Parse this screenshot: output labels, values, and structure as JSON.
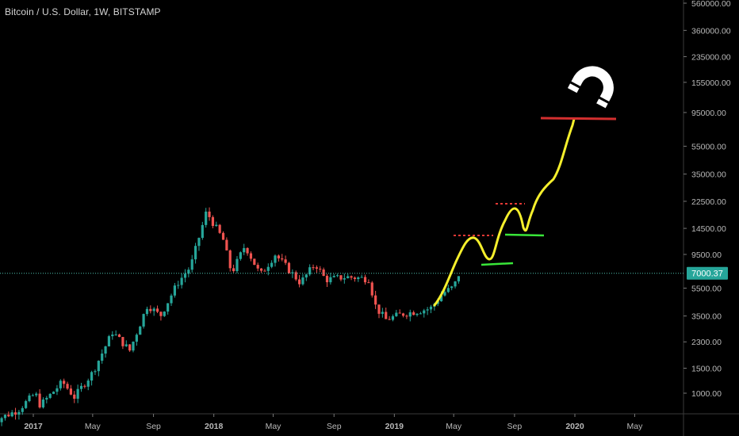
{
  "chart_data": {
    "type": "candlestick",
    "title": "Bitcoin / U.S. Dollar, 1W, BITSTAMP",
    "scale": "log",
    "ylim": [
      700,
      640000
    ],
    "y_ticks": [
      {
        "label": "560000.00",
        "value": 560000
      },
      {
        "label": "360000.00",
        "value": 360000
      },
      {
        "label": "235000.00",
        "value": 235000
      },
      {
        "label": "155000.00",
        "value": 155000
      },
      {
        "label": "95000.00",
        "value": 95000
      },
      {
        "label": "55000.00",
        "value": 55000
      },
      {
        "label": "35000.00",
        "value": 35000
      },
      {
        "label": "22500.00",
        "value": 22500
      },
      {
        "label": "14500.00",
        "value": 14500
      },
      {
        "label": "9500.00",
        "value": 9500
      },
      {
        "label": "5500.00",
        "value": 5500
      },
      {
        "label": "3500.00",
        "value": 3500
      },
      {
        "label": "2300.00",
        "value": 2300
      },
      {
        "label": "1500.00",
        "value": 1500
      },
      {
        "label": "1000.00",
        "value": 1000
      }
    ],
    "x_ticks": [
      {
        "label": "2017",
        "date": "2017-01-01",
        "bold": true
      },
      {
        "label": "May",
        "date": "2017-05-01",
        "bold": false
      },
      {
        "label": "Sep",
        "date": "2017-09-01",
        "bold": false
      },
      {
        "label": "2018",
        "date": "2018-01-01",
        "bold": true
      },
      {
        "label": "May",
        "date": "2018-05-01",
        "bold": false
      },
      {
        "label": "Sep",
        "date": "2018-09-01",
        "bold": false
      },
      {
        "label": "2019",
        "date": "2019-01-01",
        "bold": true
      },
      {
        "label": "May",
        "date": "2019-05-01",
        "bold": false
      },
      {
        "label": "Sep",
        "date": "2019-09-01",
        "bold": false
      },
      {
        "label": "2020",
        "date": "2020-01-01",
        "bold": true
      },
      {
        "label": "May",
        "date": "2020-05-01",
        "bold": false
      }
    ],
    "last_price": {
      "label": "7000.37",
      "value": 7000.37
    },
    "up_color": "#26a69a",
    "down_color": "#ef5350",
    "price_key_points": [
      {
        "date": "2016-10-01",
        "close": 610
      },
      {
        "date": "2016-12-01",
        "close": 760
      },
      {
        "date": "2017-01-05",
        "close": 1000
      },
      {
        "date": "2017-01-15",
        "close": 820
      },
      {
        "date": "2017-03-01",
        "close": 1200
      },
      {
        "date": "2017-03-25",
        "close": 940
      },
      {
        "date": "2017-05-01",
        "close": 1400
      },
      {
        "date": "2017-06-10",
        "close": 2700
      },
      {
        "date": "2017-07-15",
        "close": 2000
      },
      {
        "date": "2017-08-20",
        "close": 4200
      },
      {
        "date": "2017-09-15",
        "close": 3500
      },
      {
        "date": "2017-10-20",
        "close": 6000
      },
      {
        "date": "2017-11-15",
        "close": 7800
      },
      {
        "date": "2017-12-17",
        "close": 19000
      },
      {
        "date": "2018-01-20",
        "close": 12000
      },
      {
        "date": "2018-02-06",
        "close": 7000
      },
      {
        "date": "2018-03-05",
        "close": 11000
      },
      {
        "date": "2018-04-05",
        "close": 6800
      },
      {
        "date": "2018-05-05",
        "close": 9500
      },
      {
        "date": "2018-06-25",
        "close": 6000
      },
      {
        "date": "2018-07-25",
        "close": 8200
      },
      {
        "date": "2018-08-15",
        "close": 6300
      },
      {
        "date": "2018-09-25",
        "close": 6600
      },
      {
        "date": "2018-11-10",
        "close": 6400
      },
      {
        "date": "2018-11-25",
        "close": 4000
      },
      {
        "date": "2018-12-15",
        "close": 3300
      },
      {
        "date": "2019-01-15",
        "close": 3600
      },
      {
        "date": "2019-03-15",
        "close": 3950
      },
      {
        "date": "2019-04-10",
        "close": 5100
      },
      {
        "date": "2019-05-01",
        "close": 5600
      },
      {
        "date": "2019-05-12",
        "close": 7000
      }
    ]
  }
}
